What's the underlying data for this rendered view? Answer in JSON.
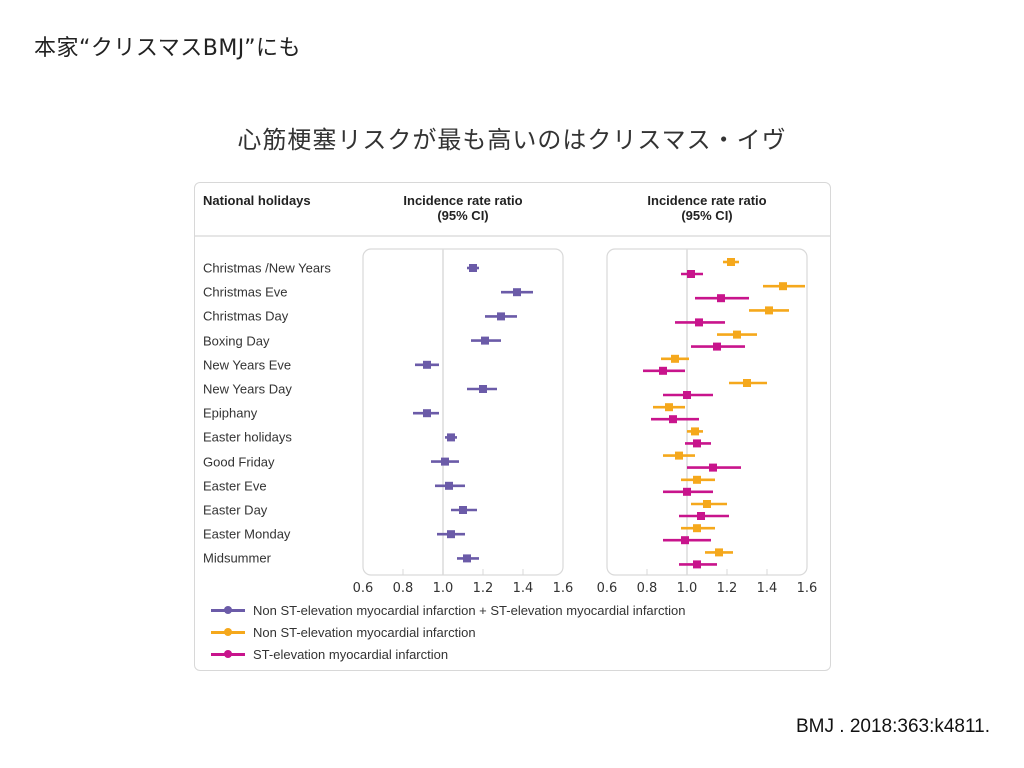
{
  "slide": {
    "title": "本家“クリスマスBMJ”にも",
    "subtitle": "心筋梗塞リスクが最も高いのはクリスマス・イヴ",
    "citation": "BMJ . 2018:363:k4811."
  },
  "colors": {
    "combined": "#6b5ba8",
    "nstemi": "#f5a81c",
    "stemi": "#c8148c",
    "panel_border": "#d9d9d9",
    "reference_line": "#dcdcdc"
  },
  "chart_data": {
    "type": "forest",
    "header": {
      "holidays": "National holidays",
      "irr_left_line1": "Incidence rate ratio",
      "irr_left_line2": "(95% CI)",
      "irr_right_line1": "Incidence rate ratio",
      "irr_right_line2": "(95% CI)"
    },
    "categories": [
      "Christmas /New Years",
      "Christmas Eve",
      "Christmas Day",
      "Boxing Day",
      "New Years Eve",
      "New Years Day",
      "Epiphany",
      "Easter holidays",
      "Good Friday",
      "Easter Eve",
      "Easter Day",
      "Easter Monday",
      "Midsummer"
    ],
    "xlim": [
      0.6,
      1.6
    ],
    "xticks": [
      "0.6",
      "0.8",
      "1.0",
      "1.2",
      "1.4",
      "1.6"
    ],
    "tick_values": [
      0.6,
      0.8,
      1.0,
      1.2,
      1.4,
      1.6
    ],
    "reference_value": 1.0,
    "panels": [
      {
        "name": "left",
        "series": [
          {
            "key": "combined",
            "name": "Non ST-elevation myocardial infarction + ST-elevation myocardial infarction",
            "estimate": [
              1.15,
              1.37,
              1.29,
              1.21,
              0.92,
              1.2,
              0.92,
              1.04,
              1.01,
              1.03,
              1.1,
              1.04,
              1.12
            ],
            "lower": [
              1.12,
              1.29,
              1.21,
              1.14,
              0.86,
              1.12,
              0.85,
              1.01,
              0.94,
              0.96,
              1.04,
              0.97,
              1.07
            ],
            "upper": [
              1.18,
              1.45,
              1.37,
              1.29,
              0.98,
              1.27,
              0.98,
              1.07,
              1.08,
              1.11,
              1.17,
              1.11,
              1.18
            ]
          }
        ]
      },
      {
        "name": "right",
        "series": [
          {
            "key": "nstemi",
            "name": "Non ST-elevation myocardial infarction",
            "estimate": [
              1.22,
              1.48,
              1.41,
              1.25,
              0.94,
              1.3,
              0.91,
              1.04,
              0.96,
              1.05,
              1.1,
              1.05,
              1.16
            ],
            "lower": [
              1.18,
              1.38,
              1.31,
              1.15,
              0.87,
              1.21,
              0.83,
              1.0,
              0.88,
              0.97,
              1.02,
              0.97,
              1.09
            ],
            "upper": [
              1.26,
              1.59,
              1.51,
              1.35,
              1.01,
              1.4,
              0.99,
              1.08,
              1.04,
              1.14,
              1.2,
              1.14,
              1.23
            ]
          },
          {
            "key": "stemi",
            "name": "ST-elevation myocardial infarction",
            "estimate": [
              1.02,
              1.17,
              1.06,
              1.15,
              0.88,
              1.0,
              0.93,
              1.05,
              1.13,
              1.0,
              1.07,
              0.99,
              1.05
            ],
            "lower": [
              0.97,
              1.04,
              0.94,
              1.02,
              0.78,
              0.88,
              0.82,
              0.99,
              1.0,
              0.88,
              0.96,
              0.88,
              0.96
            ],
            "upper": [
              1.08,
              1.31,
              1.19,
              1.29,
              0.99,
              1.13,
              1.06,
              1.12,
              1.27,
              1.13,
              1.21,
              1.12,
              1.15
            ]
          }
        ]
      }
    ],
    "legend": {
      "position": "bottom-left",
      "entries": [
        {
          "key": "combined",
          "label": "Non ST-elevation myocardial infarction + ST-elevation myocardial infarction"
        },
        {
          "key": "nstemi",
          "label": "Non ST-elevation myocardial infarction"
        },
        {
          "key": "stemi",
          "label": "ST-elevation myocardial infarction"
        }
      ]
    }
  }
}
